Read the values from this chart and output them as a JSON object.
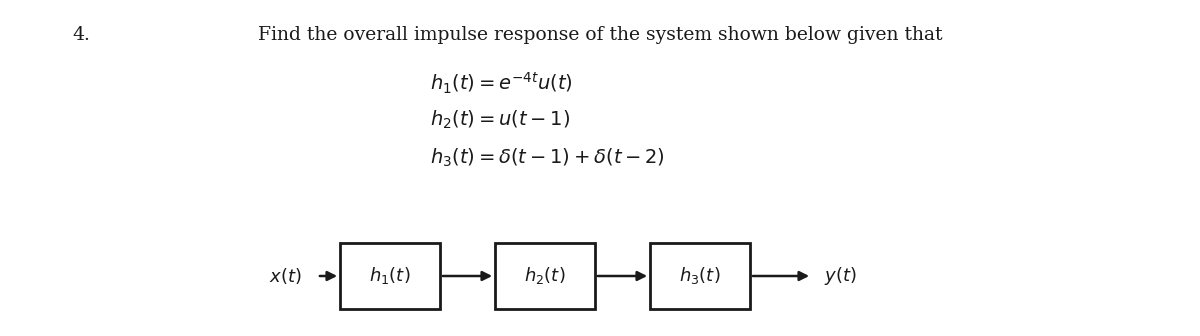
{
  "number": "4.",
  "title": "Find the overall impulse response of the system shown below given that",
  "eq1": "$h_1(t) = e^{-4t}u(t)$",
  "eq2": "$h_2(t) = u(t-1)$",
  "eq3": "$h_3(t) = \\delta(t-1) + \\delta(t-2)$",
  "block_labels": [
    "$h_1(t)$",
    "$h_2(t)$",
    "$h_3(t)$"
  ],
  "input_label": "$x(t)$",
  "output_label": "$y(t)$",
  "background_color": "#ffffff",
  "text_color": "#1a1a1a",
  "title_fontsize": 13.5,
  "eq_fontsize": 14,
  "block_fontsize": 13,
  "diagram_label_fontsize": 13,
  "number_fontsize": 13.5
}
